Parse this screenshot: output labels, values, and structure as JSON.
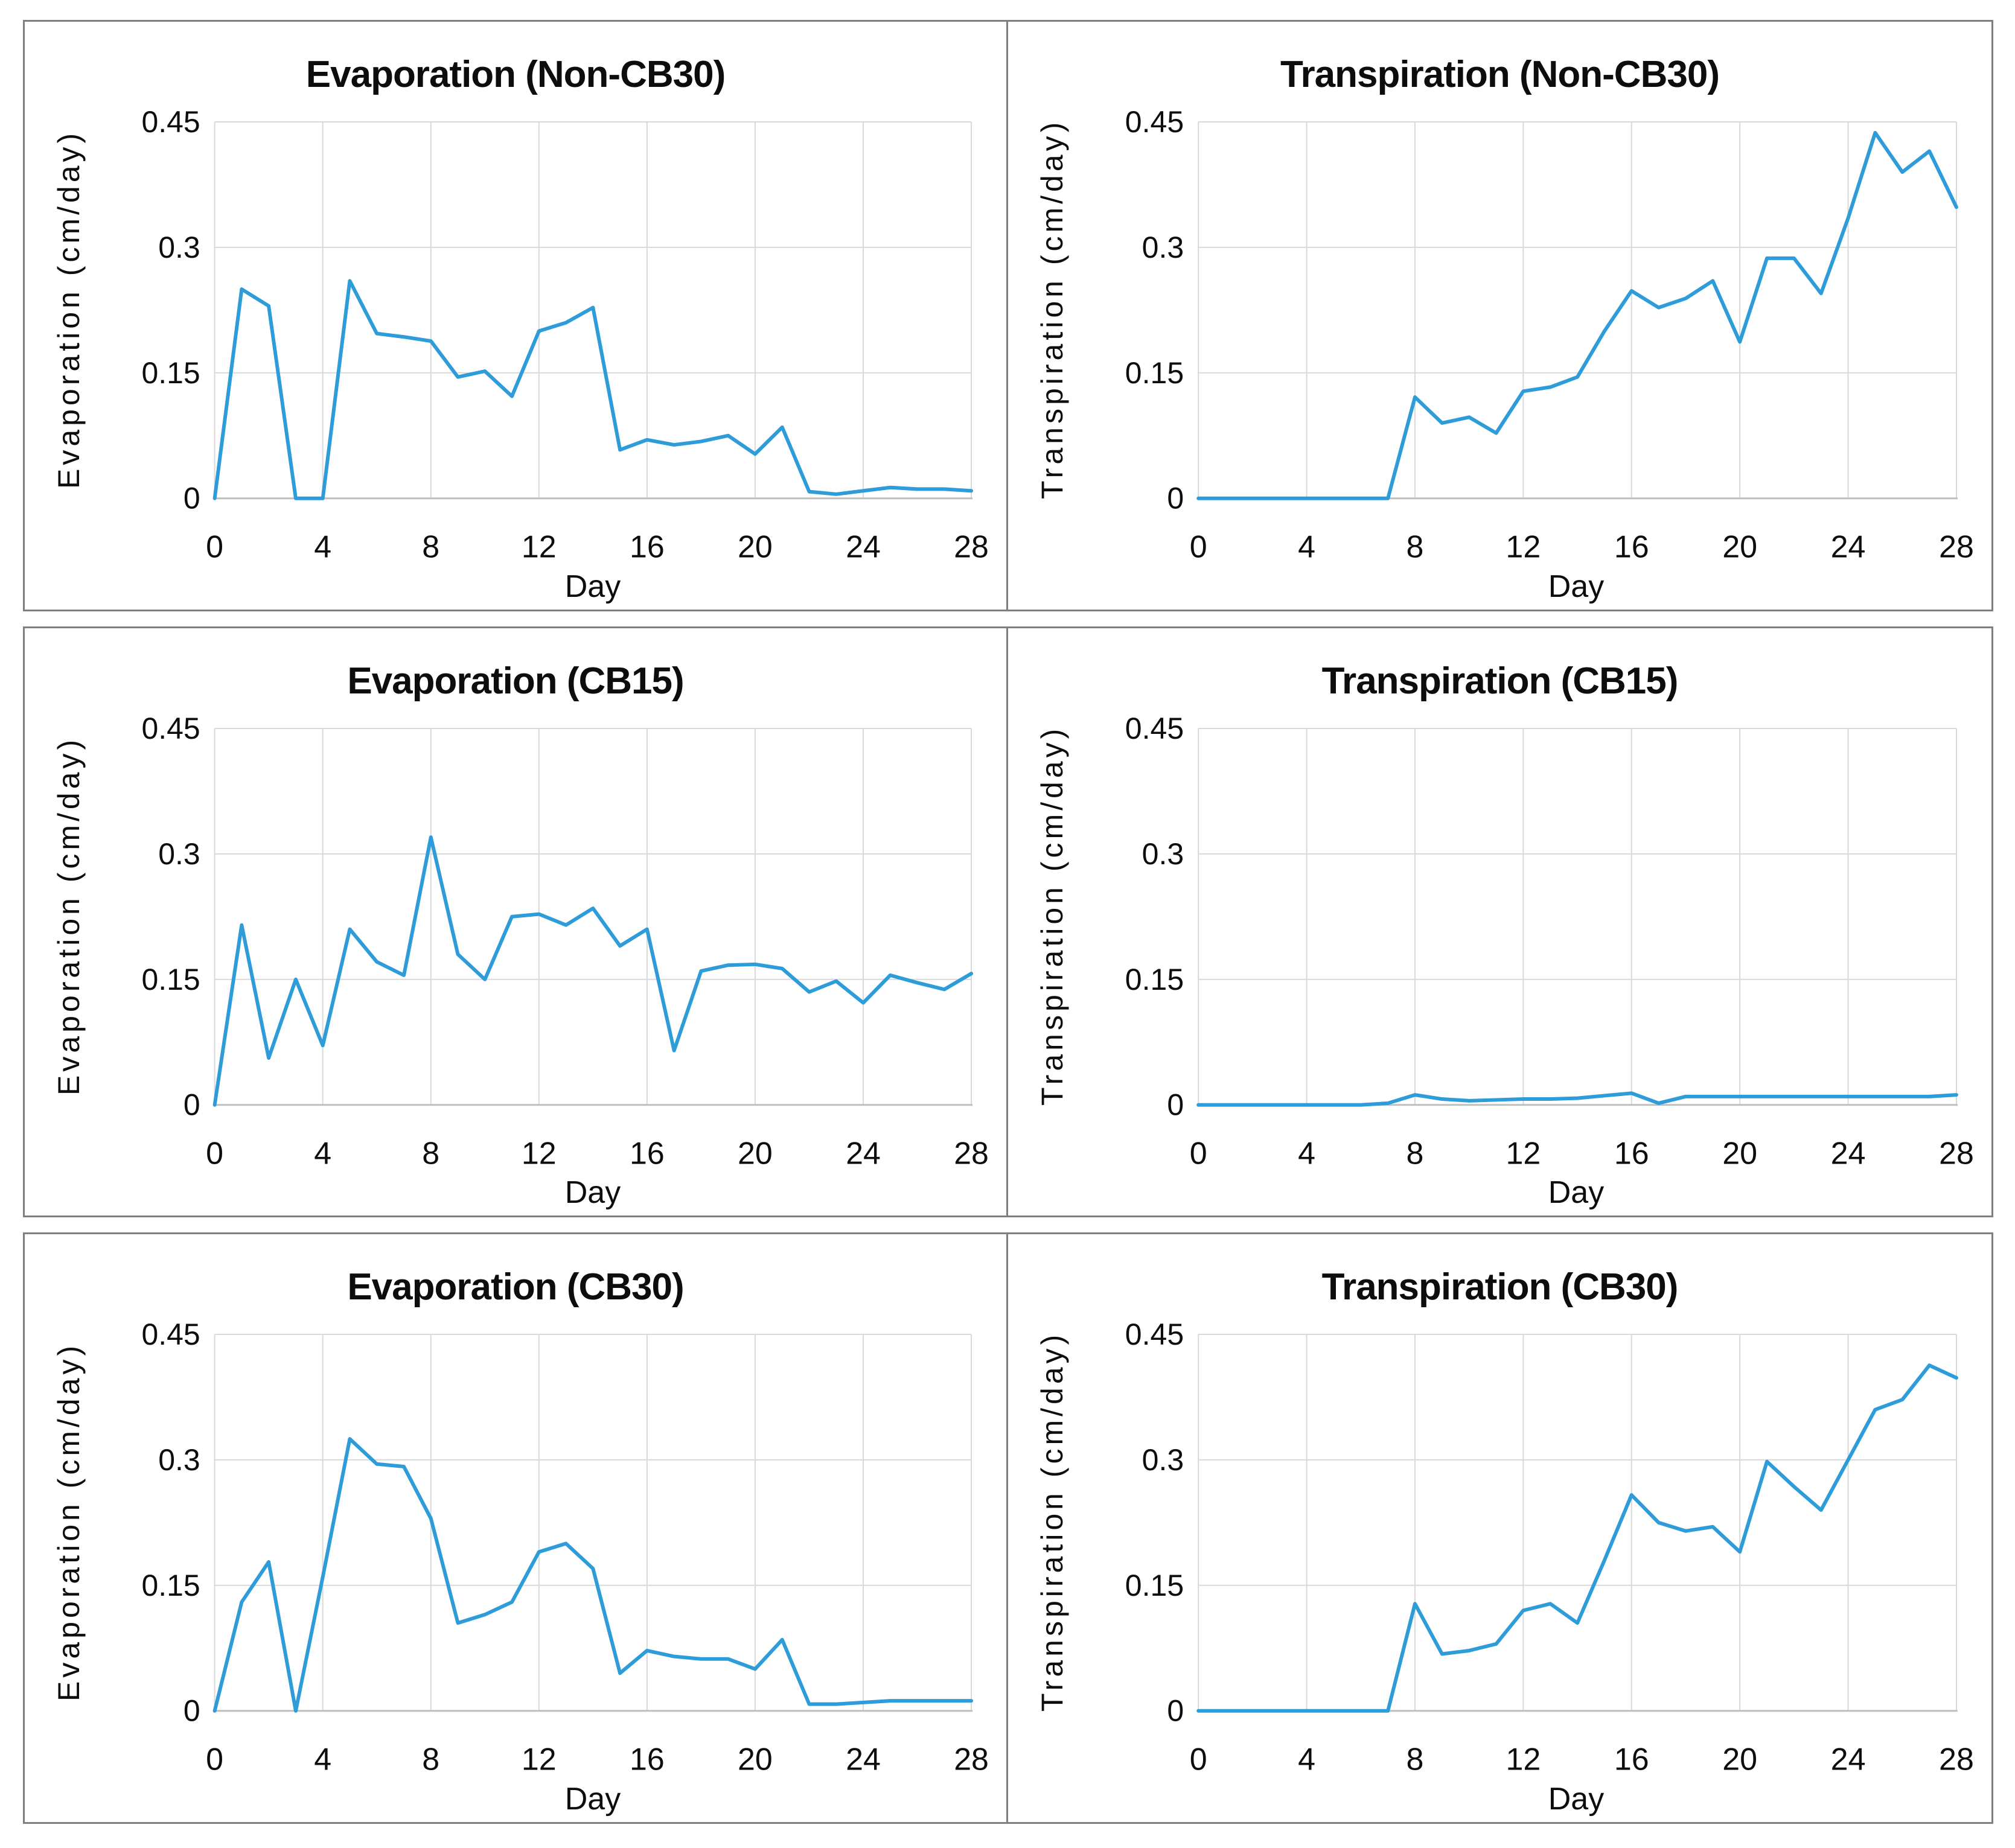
{
  "style": {
    "line_color": "#2e9cd9",
    "gridline_color": "#d9d9d9",
    "axis_line_color": "#bfbfbf",
    "panel_border_color": "#7f7f7f",
    "text_color": "#0d0d0d",
    "background": "#ffffff"
  },
  "chart_data": [
    {
      "type": "line",
      "title": "Evaporation (Non-CB30)",
      "ylabel": "Evaporation (cm/day)",
      "xlabel": "Day",
      "xlim": [
        0,
        28
      ],
      "ylim": [
        0,
        0.45
      ],
      "x_ticks": [
        0,
        4,
        8,
        12,
        16,
        20,
        24,
        28
      ],
      "y_ticks": [
        0,
        0.15,
        0.3,
        0.45
      ],
      "grid": true,
      "legend": "none",
      "x": [
        0,
        1,
        2,
        3,
        4,
        5,
        6,
        7,
        8,
        9,
        10,
        11,
        12,
        13,
        14,
        15,
        16,
        17,
        18,
        19,
        20,
        21,
        22,
        23,
        24,
        25,
        26,
        27,
        28
      ],
      "y": [
        0,
        0.25,
        0.23,
        0,
        0,
        0.26,
        0.197,
        0.193,
        0.188,
        0.145,
        0.152,
        0.122,
        0.2,
        0.21,
        0.228,
        0.058,
        0.07,
        0.064,
        0.068,
        0.075,
        0.053,
        0.085,
        0.008,
        0.005,
        0.009,
        0.013,
        0.011,
        0.011,
        0.009
      ]
    },
    {
      "type": "line",
      "title": "Transpiration (Non-CB30)",
      "ylabel": "Transpiration (cm/day)",
      "xlabel": "Day",
      "xlim": [
        0,
        28
      ],
      "ylim": [
        0,
        0.45
      ],
      "x_ticks": [
        0,
        4,
        8,
        12,
        16,
        20,
        24,
        28
      ],
      "y_ticks": [
        0,
        0.15,
        0.3,
        0.45
      ],
      "grid": true,
      "legend": "none",
      "x": [
        0,
        1,
        2,
        3,
        4,
        5,
        6,
        7,
        8,
        9,
        10,
        11,
        12,
        13,
        14,
        15,
        16,
        17,
        18,
        19,
        20,
        21,
        22,
        23,
        24,
        25,
        26,
        27,
        28
      ],
      "y": [
        0,
        0,
        0,
        0,
        0,
        0,
        0,
        0,
        0.121,
        0.09,
        0.097,
        0.078,
        0.128,
        0.133,
        0.145,
        0.2,
        0.248,
        0.228,
        0.239,
        0.26,
        0.187,
        0.287,
        0.287,
        0.245,
        0.335,
        0.437,
        0.39,
        0.415,
        0.348
      ]
    },
    {
      "type": "line",
      "title": "Evaporation (CB15)",
      "ylabel": "Evaporation (cm/day)",
      "xlabel": "Day",
      "xlim": [
        0,
        28
      ],
      "ylim": [
        0,
        0.45
      ],
      "x_ticks": [
        0,
        4,
        8,
        12,
        16,
        20,
        24,
        28
      ],
      "y_ticks": [
        0,
        0.15,
        0.3,
        0.45
      ],
      "grid": true,
      "legend": "none",
      "x": [
        0,
        1,
        2,
        3,
        4,
        5,
        6,
        7,
        8,
        9,
        10,
        11,
        12,
        13,
        14,
        15,
        16,
        17,
        18,
        19,
        20,
        21,
        22,
        23,
        24,
        25,
        26,
        27,
        28
      ],
      "y": [
        0,
        0.215,
        0.056,
        0.15,
        0.071,
        0.21,
        0.171,
        0.155,
        0.32,
        0.18,
        0.15,
        0.225,
        0.228,
        0.215,
        0.235,
        0.19,
        0.21,
        0.065,
        0.16,
        0.167,
        0.168,
        0.163,
        0.135,
        0.148,
        0.122,
        0.155,
        0.146,
        0.138,
        0.157
      ]
    },
    {
      "type": "line",
      "title": "Transpiration (CB15)",
      "ylabel": "Transpiration (cm/day)",
      "xlabel": "Day",
      "xlim": [
        0,
        28
      ],
      "ylim": [
        0,
        0.45
      ],
      "x_ticks": [
        0,
        4,
        8,
        12,
        16,
        20,
        24,
        28
      ],
      "y_ticks": [
        0,
        0.15,
        0.3,
        0.45
      ],
      "grid": true,
      "legend": "none",
      "x": [
        0,
        1,
        2,
        3,
        4,
        5,
        6,
        7,
        8,
        9,
        10,
        11,
        12,
        13,
        14,
        15,
        16,
        17,
        18,
        19,
        20,
        21,
        22,
        23,
        24,
        25,
        26,
        27,
        28
      ],
      "y": [
        0,
        0,
        0,
        0,
        0,
        0,
        0,
        0.002,
        0.012,
        0.007,
        0.005,
        0.006,
        0.007,
        0.007,
        0.008,
        0.011,
        0.014,
        0.002,
        0.01,
        0.01,
        0.01,
        0.01,
        0.01,
        0.01,
        0.01,
        0.01,
        0.01,
        0.01,
        0.012
      ]
    },
    {
      "type": "line",
      "title": "Evaporation (CB30)",
      "ylabel": "Evaporation (cm/day)",
      "xlabel": "Day",
      "xlim": [
        0,
        28
      ],
      "ylim": [
        0,
        0.45
      ],
      "x_ticks": [
        0,
        4,
        8,
        12,
        16,
        20,
        24,
        28
      ],
      "y_ticks": [
        0,
        0.15,
        0.3,
        0.45
      ],
      "grid": true,
      "legend": "none",
      "x": [
        0,
        1,
        2,
        3,
        4,
        5,
        6,
        7,
        8,
        9,
        10,
        11,
        12,
        13,
        14,
        15,
        16,
        17,
        18,
        19,
        20,
        21,
        22,
        23,
        24,
        25,
        26,
        27,
        28
      ],
      "y": [
        0,
        0.13,
        0.178,
        0,
        0.16,
        0.325,
        0.295,
        0.292,
        0.23,
        0.105,
        0.115,
        0.13,
        0.19,
        0.2,
        0.17,
        0.045,
        0.072,
        0.065,
        0.062,
        0.062,
        0.05,
        0.085,
        0.008,
        0.008,
        0.01,
        0.012,
        0.012,
        0.012,
        0.012
      ]
    },
    {
      "type": "line",
      "title": "Transpiration (CB30)",
      "ylabel": "Transpiration (cm/day)",
      "xlabel": "Day",
      "xlim": [
        0,
        28
      ],
      "ylim": [
        0,
        0.45
      ],
      "x_ticks": [
        0,
        4,
        8,
        12,
        16,
        20,
        24,
        28
      ],
      "y_ticks": [
        0,
        0.15,
        0.3,
        0.45
      ],
      "grid": true,
      "legend": "none",
      "x": [
        0,
        1,
        2,
        3,
        4,
        5,
        6,
        7,
        8,
        9,
        10,
        11,
        12,
        13,
        14,
        15,
        16,
        17,
        18,
        19,
        20,
        21,
        22,
        23,
        24,
        25,
        26,
        27,
        28
      ],
      "y": [
        0,
        0,
        0,
        0,
        0,
        0,
        0,
        0,
        0.128,
        0.068,
        0.072,
        0.08,
        0.12,
        0.128,
        0.105,
        0.18,
        0.258,
        0.225,
        0.215,
        0.22,
        0.19,
        0.298,
        0.268,
        0.24,
        0.3,
        0.36,
        0.372,
        0.413,
        0.398
      ]
    }
  ]
}
